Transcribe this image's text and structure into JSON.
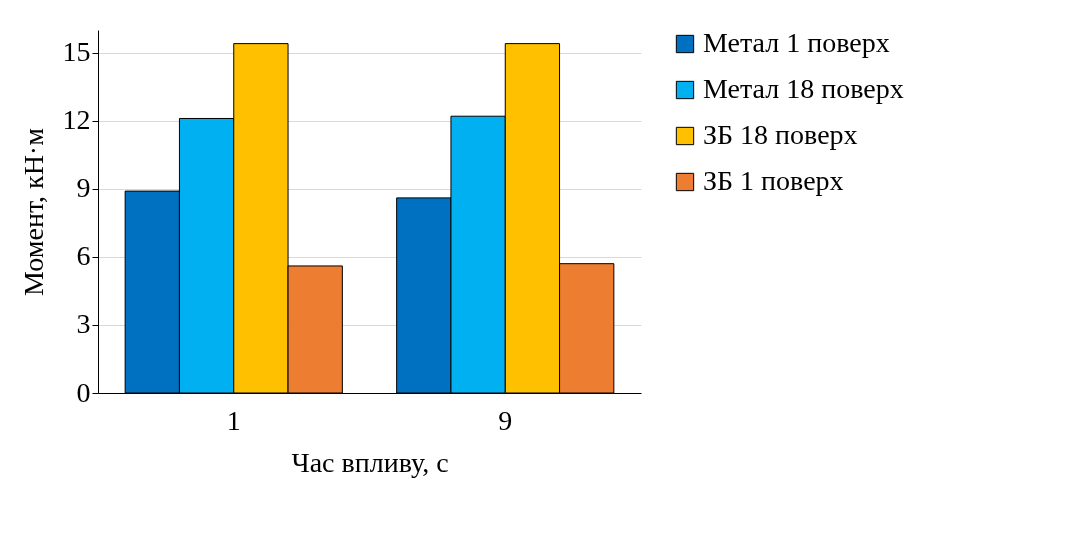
{
  "chart_data": {
    "type": "bar",
    "xlabel": "Час впливу, с",
    "ylabel": "Момент, кН·м",
    "categories": [
      "1",
      "9"
    ],
    "series": [
      {
        "name": "Метал 1 поверх",
        "color": "#0070c0",
        "values": [
          8.9,
          8.6
        ]
      },
      {
        "name": "Метал 18 поверх",
        "color": "#00b0f0",
        "values": [
          12.1,
          12.2
        ]
      },
      {
        "name": "ЗБ 18 поверх",
        "color": "#ffc000",
        "values": [
          15.4,
          15.4
        ]
      },
      {
        "name": "ЗБ 1 поверх",
        "color": "#ed7d31",
        "values": [
          5.6,
          5.7
        ]
      }
    ],
    "ylim": [
      0,
      16
    ],
    "yticks": [
      0,
      3,
      6,
      9,
      12,
      15
    ],
    "grid": "y",
    "legend": "right"
  }
}
